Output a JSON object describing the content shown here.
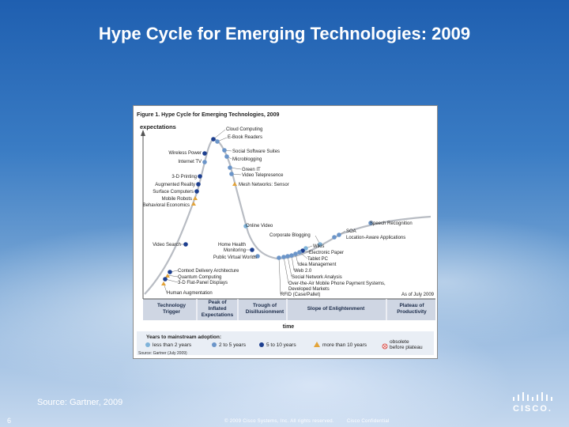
{
  "title": "Hype Cycle for Emerging Technologies: 2009",
  "figure": {
    "caption": "Figure 1. Hype Cycle for Emerging Technologies, 2009",
    "ylabel": "expectations",
    "xlabel": "time",
    "as_of": "As of July 2009",
    "source_note": "Source: Gartner (July 2009)",
    "phases": [
      {
        "line1": "Technology",
        "line2": "Trigger",
        "line3": ""
      },
      {
        "line1": "Peak of",
        "line2": "Inflated",
        "line3": "Expectations"
      },
      {
        "line1": "Trough of",
        "line2": "Disillusionment",
        "line3": ""
      },
      {
        "line1": "Slope of Enlightenment",
        "line2": "",
        "line3": ""
      },
      {
        "line1": "Plateau of",
        "line2": "Productivity",
        "line3": ""
      }
    ],
    "legend_title": "Years to mainstream adoption:",
    "legend": [
      {
        "label": "less than 2 years",
        "color": "#7fb3d9",
        "shape": "circle"
      },
      {
        "label": "2 to 5 years",
        "color": "#6b95c9",
        "shape": "circle"
      },
      {
        "label": "5 to 10 years",
        "color": "#1d3f8f",
        "shape": "circle"
      },
      {
        "label": "more than 10 years",
        "color": "#e3a43a",
        "shape": "triangle"
      },
      {
        "label": "obsolete",
        "label2": "before plateau",
        "color": "#d9534f",
        "shape": "x-circle"
      }
    ],
    "technologies": [
      {
        "name": "Cloud Computing",
        "category": "5 to 10 years"
      },
      {
        "name": "E-Book Readers",
        "category": "2 to 5 years"
      },
      {
        "name": "Wireless Power",
        "category": "5 to 10 years"
      },
      {
        "name": "Internet TV",
        "category": "2 to 5 years"
      },
      {
        "name": "Social Software Suites",
        "category": "2 to 5 years"
      },
      {
        "name": "Microblogging",
        "category": "2 to 5 years"
      },
      {
        "name": "Green IT",
        "category": "2 to 5 years"
      },
      {
        "name": "Video Telepresence",
        "category": "2 to 5 years"
      },
      {
        "name": "3-D Printing",
        "category": "5 to 10 years"
      },
      {
        "name": "Augmented Reality",
        "category": "5 to 10 years"
      },
      {
        "name": "Mesh Networks: Sensor",
        "category": "more than 10 years"
      },
      {
        "name": "Surface Computers",
        "category": "5 to 10 years"
      },
      {
        "name": "Mobile Robots",
        "category": "more than 10 years"
      },
      {
        "name": "Behavioral Economics",
        "category": "more than 10 years"
      },
      {
        "name": "Online Video",
        "category": "less than 2 years"
      },
      {
        "name": "Speech Recognition",
        "category": "2 to 5 years"
      },
      {
        "name": "Corporate Blogging",
        "category": "less than 2 years"
      },
      {
        "name": "SOA",
        "category": "2 to 5 years"
      },
      {
        "name": "Location-Aware Applications",
        "category": "2 to 5 years"
      },
      {
        "name": "Video Search",
        "category": "5 to 10 years"
      },
      {
        "name": "Home Health",
        "category": "5 to 10 years"
      },
      {
        "name": "Monitoring",
        "category": "5 to 10 years"
      },
      {
        "name": "Wikis",
        "category": "less than 2 years"
      },
      {
        "name": "Electronic Paper",
        "category": "5 to 10 years"
      },
      {
        "name": "Public Virtual Worlds",
        "category": "2 to 5 years"
      },
      {
        "name": "Tablet PC",
        "category": "2 to 5 years"
      },
      {
        "name": "Idea Management",
        "category": "2 to 5 years"
      },
      {
        "name": "Web 2.0",
        "category": "2 to 5 years"
      },
      {
        "name": "Context Delivery Architecture",
        "category": "5 to 10 years"
      },
      {
        "name": "Quantum Computing",
        "category": "more than 10 years"
      },
      {
        "name": "3-D Flat-Panel Displays",
        "category": "5 to 10 years"
      },
      {
        "name": "Human Augmentation",
        "category": "more than 10 years"
      },
      {
        "name": "Social Network Analysis",
        "category": "2 to 5 years"
      },
      {
        "name": "Over-the-Air Mobile Phone Payment Systems,",
        "category": "2 to 5 years"
      },
      {
        "name": "Developed Markets",
        "category": "2 to 5 years"
      },
      {
        "name": "RFID (Case/Pallet)",
        "category": "2 to 5 years"
      }
    ]
  },
  "source": "Source: Gartner, 2009",
  "page_number": "6",
  "footer": {
    "copyright": "© 2009 Cisco Systems, Inc. All rights reserved.",
    "confidential": "Cisco Confidential"
  },
  "logo": {
    "word": "CISCO."
  }
}
